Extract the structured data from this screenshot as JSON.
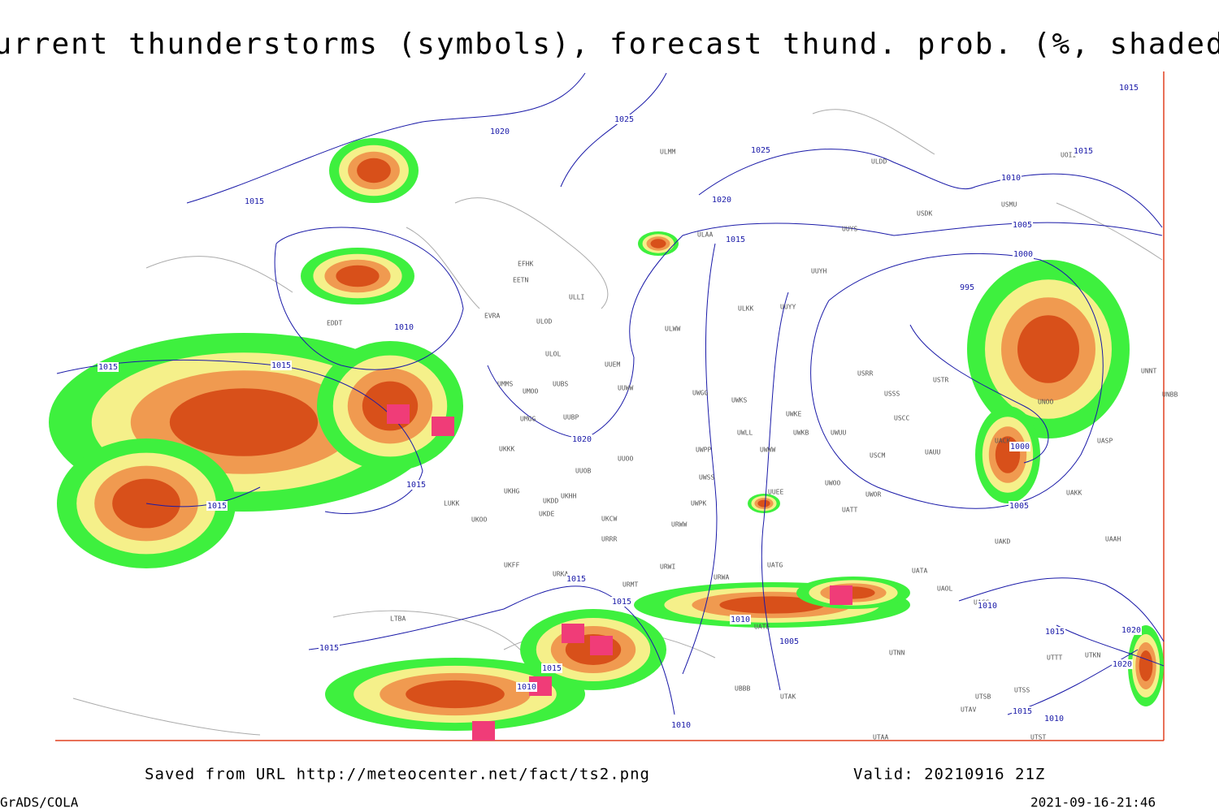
{
  "title": "Current thunderstorms (symbols), forecast thund. prob. (%, shaded)",
  "footer": {
    "saved_from": "Saved from URL http://meteocenter.net/fact/ts2.png",
    "valid": "Valid: 20210916 21Z",
    "software": "GrADS/COLA",
    "timestamp": "2021-09-16-21:46"
  },
  "isobar_labels": [
    1020,
    1025,
    1025,
    1015,
    1020,
    1015,
    1010,
    1005,
    1000,
    995,
    1010,
    1015,
    1015,
    1020,
    1015,
    1015,
    1000,
    1005,
    1015,
    1015,
    1010,
    1005,
    1015,
    1015,
    1010,
    1010,
    1015,
    1020,
    1020,
    1015,
    1010,
    1015,
    1015,
    1010
  ],
  "stations": [
    "ULMM",
    "ULDD",
    "UOII",
    "USDK",
    "USMU",
    "ULAA",
    "UUYS",
    "UUYH",
    "EFHK",
    "EETN",
    "ULLI",
    "ULKK",
    "UUYY",
    "EVRA",
    "ULOD",
    "ULWW",
    "EDDT",
    "ULOL",
    "UUEM",
    "UMMS",
    "UMOO",
    "UUBS",
    "UUWW",
    "UWGG",
    "UWKS",
    "USRR",
    "USTR",
    "USSS",
    "UMGG",
    "UUBP",
    "UWKE",
    "USCC",
    "UWLL",
    "UWKB",
    "UWUU",
    "UKKK",
    "UUOO",
    "UWPP",
    "UWWW",
    "USCM",
    "UAUU",
    "UUOB",
    "UWSS",
    "UUEE",
    "UWOO",
    "UWOR",
    "LUKK",
    "UKHH",
    "UKDD",
    "UKHG",
    "UWPK",
    "UATT",
    "UKOO",
    "UKDE",
    "UKCW",
    "URWW",
    "UAKD",
    "URRR",
    "UKFF",
    "URWI",
    "UATG",
    "URKA",
    "URWA",
    "UATA",
    "UAOL",
    "URMT",
    "UACC",
    "LTBA",
    "UATE",
    "UTNN",
    "UAAH",
    "UASP",
    "UACK",
    "UAKK",
    "UNBB",
    "UNNT",
    "UNOO",
    "UTTT",
    "UTKN",
    "UTSB",
    "UTSS",
    "UTAV",
    "UTAK",
    "UTAA",
    "UTST",
    "UBBB"
  ]
}
